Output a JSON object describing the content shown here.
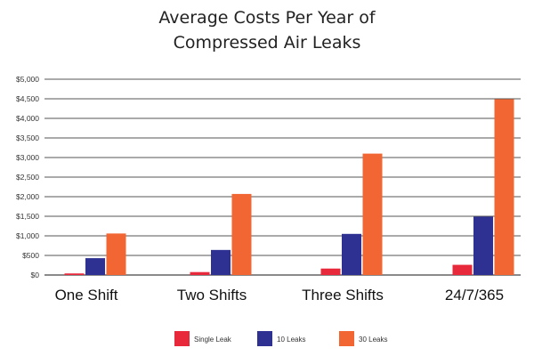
{
  "title_lines": [
    "Average Costs Per Year of",
    "Compressed Air Leaks"
  ],
  "chart_data": {
    "type": "bar",
    "title": "Average Costs Per Year of Compressed Air Leaks",
    "xlabel": "",
    "ylabel": "",
    "categories": [
      "One Shift",
      "Two Shifts",
      "Three Shifts",
      "24/7/365"
    ],
    "series": [
      {
        "name": "Single Leak",
        "color": "#e8283b",
        "values": [
          40,
          75,
          165,
          260
        ]
      },
      {
        "name": "10 Leaks",
        "color": "#2e3192",
        "values": [
          430,
          640,
          1050,
          1490
        ]
      },
      {
        "name": "30 Leaks",
        "color": "#f26634",
        "values": [
          1060,
          2070,
          3100,
          4490
        ]
      }
    ],
    "ylim": [
      0,
      5000
    ],
    "yticks": [
      0,
      500,
      1000,
      1500,
      2000,
      2500,
      3000,
      3500,
      4000,
      4500,
      5000
    ],
    "ytick_labels": [
      "$0",
      "$500",
      "$1,000",
      "$1,500",
      "$2,000",
      "$2,500",
      "$3,000",
      "$3,500",
      "$4,000",
      "$4,500",
      "$5,000"
    ],
    "grid": true,
    "legend_position": "bottom-center"
  }
}
